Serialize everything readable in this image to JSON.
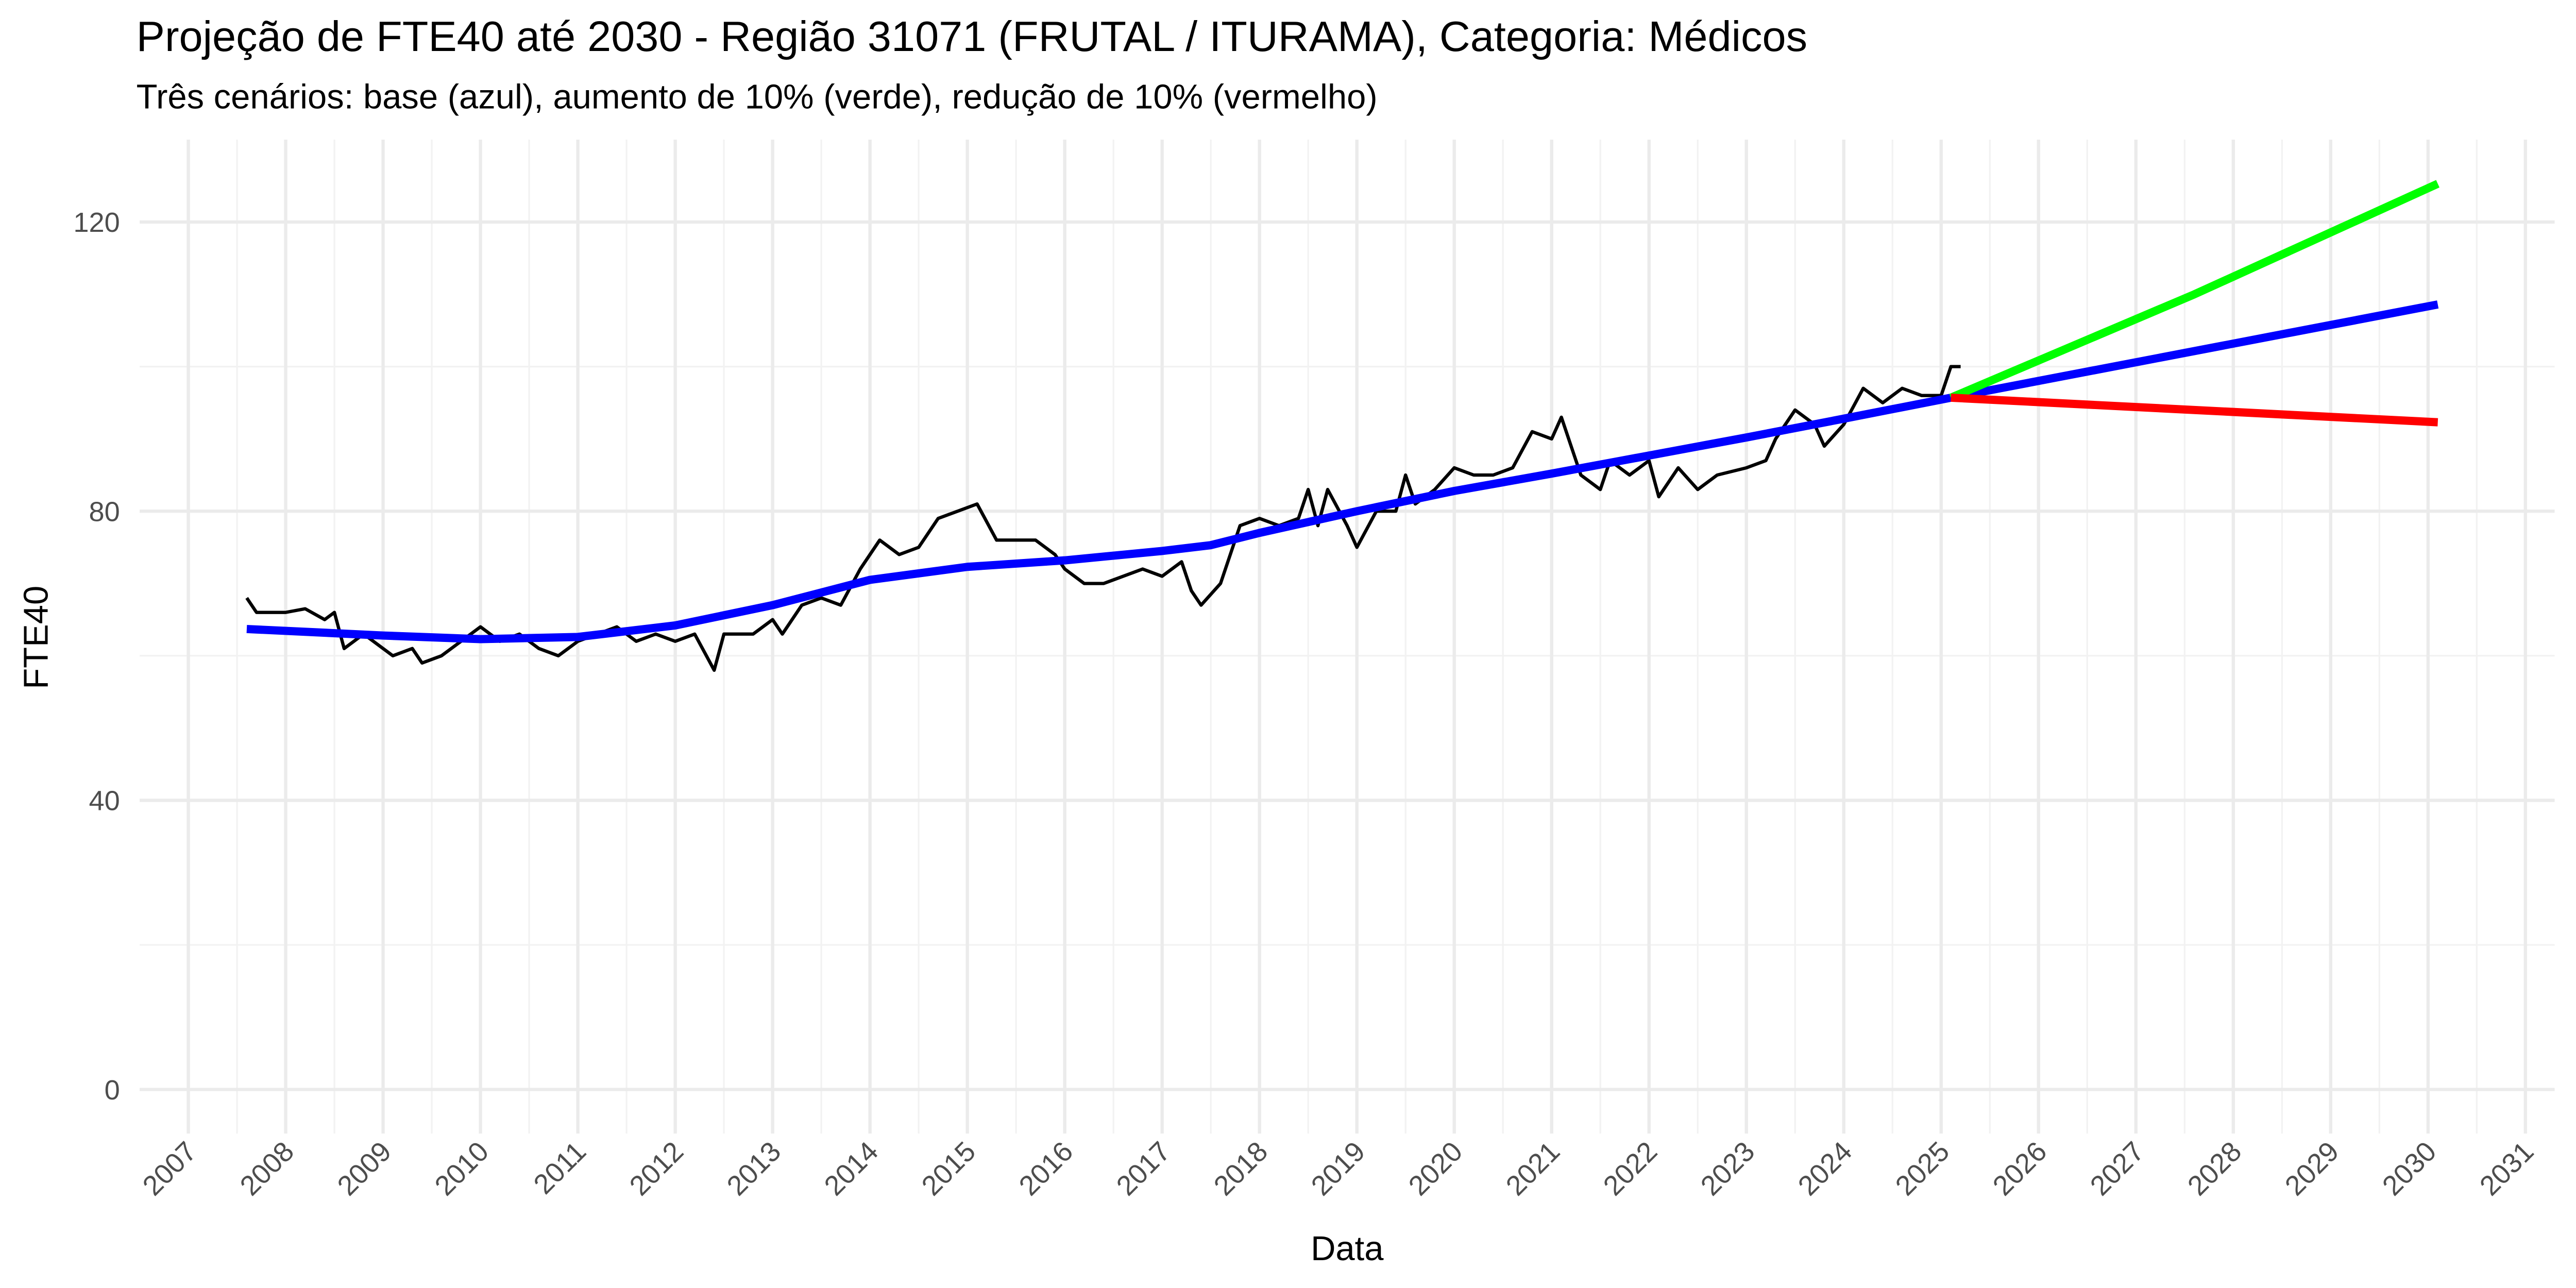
{
  "chart_data": {
    "type": "line",
    "title": "Projeção de FTE40 até 2030 - Região 31071 (FRUTAL / ITURAMA), Categoria: Médicos",
    "subtitle": "Três cenários: base (azul), aumento de 10% (verde), redução de 10% (vermelho)",
    "xlabel": "Data",
    "ylabel": "FTE40",
    "xlim": [
      2006.5,
      2031.3
    ],
    "ylim": [
      -6.1,
      131.4
    ],
    "xticks": [
      2007,
      2008,
      2009,
      2010,
      2011,
      2012,
      2013,
      2014,
      2015,
      2016,
      2017,
      2018,
      2019,
      2020,
      2021,
      2022,
      2023,
      2024,
      2025,
      2026,
      2027,
      2028,
      2029,
      2030,
      2031
    ],
    "yticks": [
      0,
      40,
      80,
      120
    ],
    "grid": true,
    "series": [
      {
        "color": "#000000",
        "x": [
          2007.6,
          2007.7,
          2008.0,
          2008.2,
          2008.4,
          2008.5,
          2008.6,
          2008.8,
          2009.0,
          2009.1,
          2009.3,
          2009.4,
          2009.6,
          2009.8,
          2010.0,
          2010.2,
          2010.4,
          2010.6,
          2010.8,
          2011.0,
          2011.2,
          2011.4,
          2011.6,
          2011.8,
          2012.0,
          2012.2,
          2012.4,
          2012.5,
          2012.8,
          2013.0,
          2013.1,
          2013.3,
          2013.5,
          2013.7,
          2013.9,
          2014.1,
          2014.3,
          2014.5,
          2014.7,
          2014.9,
          2015.1,
          2015.3,
          2015.5,
          2015.7,
          2015.9,
          2016.0,
          2016.2,
          2016.4,
          2016.6,
          2016.8,
          2017.0,
          2017.2,
          2017.3,
          2017.4,
          2017.6,
          2017.8,
          2018.0,
          2018.2,
          2018.4,
          2018.5,
          2018.6,
          2018.7,
          2018.9,
          2019.0,
          2019.2,
          2019.4,
          2019.5,
          2019.6,
          2019.8,
          2020.0,
          2020.2,
          2020.4,
          2020.6,
          2020.8,
          2021.0,
          2021.1,
          2021.3,
          2021.5,
          2021.6,
          2021.8,
          2022.0,
          2022.1,
          2022.3,
          2022.5,
          2022.7,
          2023.0,
          2023.2,
          2023.3,
          2023.5,
          2023.7,
          2023.8,
          2024.0,
          2024.2,
          2024.4,
          2024.6,
          2024.8,
          2025.0,
          2025.1,
          2025.2
        ],
        "values": [
          68,
          66,
          66,
          66.5,
          65,
          66,
          61,
          63,
          61,
          60,
          61,
          59,
          60,
          62,
          64,
          62,
          63,
          61,
          60,
          62,
          63,
          64,
          62,
          63,
          62,
          63,
          58,
          63,
          63,
          65,
          63,
          67,
          68,
          67,
          72,
          76,
          74,
          75,
          79,
          80,
          81,
          76,
          76,
          76,
          74,
          72,
          70,
          70,
          71,
          72,
          71,
          73,
          69,
          67,
          70,
          78,
          79,
          78,
          79,
          83,
          78,
          83,
          78,
          75,
          80,
          80,
          85,
          81,
          83,
          86,
          85,
          85,
          86,
          91,
          90,
          93,
          85,
          83,
          87,
          85,
          87,
          82,
          86,
          83,
          85,
          86,
          87,
          90,
          94,
          92,
          89,
          92,
          97,
          95,
          97,
          96,
          96,
          100,
          100
        ]
      },
      {
        "color": "#0000ff",
        "x": [
          2007.6,
          2009,
          2010,
          2011,
          2012,
          2013,
          2014,
          2015,
          2016,
          2017,
          2017.5,
          2018,
          2019,
          2020,
          2021,
          2022,
          2023,
          2024,
          2025.1,
          2030.1
        ],
        "values": [
          63.7,
          62.8,
          62.3,
          62.6,
          64.2,
          67,
          70.5,
          72.3,
          73.2,
          74.5,
          75.3,
          77,
          80,
          82.8,
          85.2,
          87.7,
          90.2,
          92.8,
          95.7,
          108.6
        ]
      },
      {
        "color": "#00ff00",
        "x": [
          2025.1,
          2027.6,
          2030.1
        ],
        "values": [
          95.7,
          110,
          125.3
        ]
      },
      {
        "color": "#ff0000",
        "x": [
          2025.1,
          2030.1
        ],
        "values": [
          95.7,
          92.3
        ]
      }
    ]
  }
}
